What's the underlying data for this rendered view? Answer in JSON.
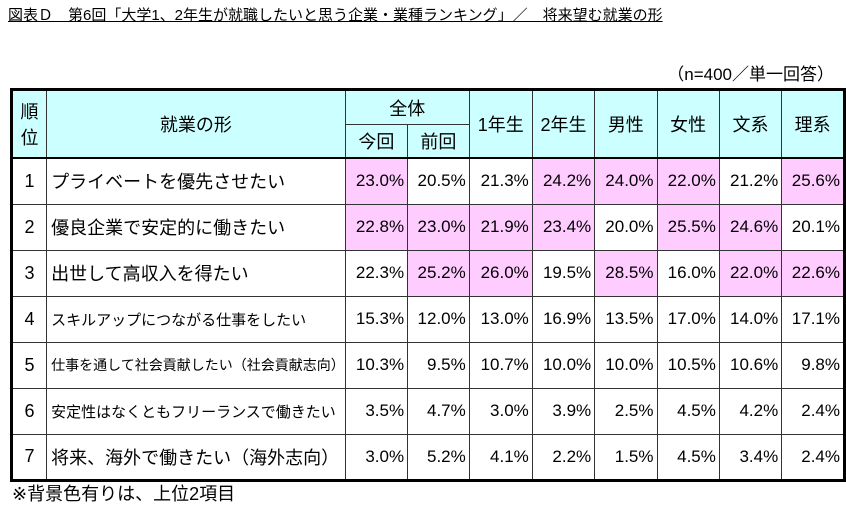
{
  "title": "図表Ｄ　第6回「大学1、2年生が就職したいと思う企業・業種ランキング」／　将来望む就業の形",
  "sample_note": "（n=400／単一回答）",
  "highlight_color": "#ffccff",
  "header_color": "#ccffff",
  "headers": {
    "rank": "順位",
    "item": "就業の形",
    "overall": "全体",
    "current": "今回",
    "previous": "前回",
    "columns": [
      "1年生",
      "2年生",
      "男性",
      "女性",
      "文系",
      "理系"
    ]
  },
  "rows": [
    {
      "rank": "1",
      "label": "プライベートを優先させたい",
      "values": [
        "23.0%",
        "20.5%",
        "21.3%",
        "24.2%",
        "24.0%",
        "22.0%",
        "21.2%",
        "25.6%"
      ],
      "highlight": [
        true,
        false,
        false,
        true,
        true,
        true,
        false,
        true
      ]
    },
    {
      "rank": "2",
      "label": "優良企業で安定的に働きたい",
      "values": [
        "22.8%",
        "23.0%",
        "21.9%",
        "23.4%",
        "20.0%",
        "25.5%",
        "24.6%",
        "20.1%"
      ],
      "highlight": [
        true,
        true,
        true,
        true,
        false,
        true,
        true,
        false
      ]
    },
    {
      "rank": "3",
      "label": "出世して高収入を得たい",
      "values": [
        "22.3%",
        "25.2%",
        "26.0%",
        "19.5%",
        "28.5%",
        "16.0%",
        "22.0%",
        "22.6%"
      ],
      "highlight": [
        false,
        true,
        true,
        false,
        true,
        false,
        true,
        true
      ]
    },
    {
      "rank": "4",
      "label": "スキルアップにつながる仕事をしたい",
      "values": [
        "15.3%",
        "12.0%",
        "13.0%",
        "16.9%",
        "13.5%",
        "17.0%",
        "14.0%",
        "17.1%"
      ],
      "highlight": [
        false,
        false,
        false,
        false,
        false,
        false,
        false,
        false
      ]
    },
    {
      "rank": "5",
      "label": "仕事を通して社会貢献したい（社会貢献志向）",
      "values": [
        "10.3%",
        "9.5%",
        "10.7%",
        "10.0%",
        "10.0%",
        "10.5%",
        "10.6%",
        "9.8%"
      ],
      "highlight": [
        false,
        false,
        false,
        false,
        false,
        false,
        false,
        false
      ]
    },
    {
      "rank": "6",
      "label": "安定性はなくともフリーランスで働きたい",
      "values": [
        "3.5%",
        "4.7%",
        "3.0%",
        "3.9%",
        "2.5%",
        "4.5%",
        "4.2%",
        "2.4%"
      ],
      "highlight": [
        false,
        false,
        false,
        false,
        false,
        false,
        false,
        false
      ]
    },
    {
      "rank": "7",
      "label": "将来、海外で働きたい（海外志向）",
      "values": [
        "3.0%",
        "5.2%",
        "4.1%",
        "2.2%",
        "1.5%",
        "4.5%",
        "3.4%",
        "2.4%"
      ],
      "highlight": [
        false,
        false,
        false,
        false,
        false,
        false,
        false,
        false
      ]
    }
  ],
  "footnote": "※背景色有りは、上位2項目"
}
